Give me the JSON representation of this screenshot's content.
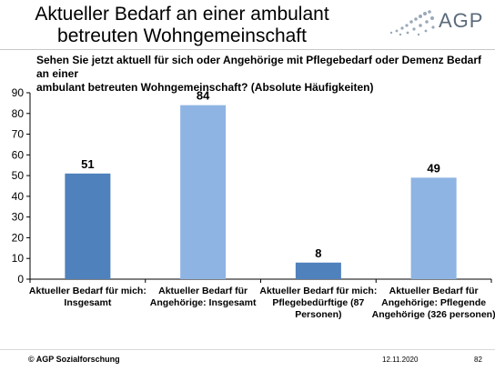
{
  "header": {
    "title_line1": "Aktueller Bedarf an einer ambulant",
    "title_line2": "betreuten Wohngemeinschaft",
    "logo_text": "AGP",
    "logo_color": "#5b6b7b"
  },
  "question": {
    "line1": "Sehen Sie jetzt aktuell für sich oder Angehörige mit Pflegebedarf oder Demenz Bedarf an einer",
    "line2": "ambulant betreuten Wohngemeinschaft? (Absolute Häufigkeiten)"
  },
  "chart_data": {
    "type": "bar",
    "categories": [
      [
        "Aktueller Bedarf für mich:",
        "Insgesamt"
      ],
      [
        "Aktueller Bedarf für",
        "Angehörige: Insgesamt"
      ],
      [
        "Aktueller Bedarf für mich:",
        "Pflegebedürftige (87",
        "Personen)"
      ],
      [
        "Aktueller Bedarf für",
        "Angehörige: Pflegende",
        "Angehörige (326 personen)"
      ]
    ],
    "values": [
      51,
      84,
      8,
      49
    ],
    "bar_colors": [
      "#4f81bd",
      "#8eb4e3",
      "#4f81bd",
      "#8eb4e3"
    ],
    "ylim": [
      0,
      90
    ],
    "yticks": [
      "0",
      "10",
      "20",
      "30",
      "40",
      "50",
      "60",
      "70",
      "80",
      "90"
    ],
    "data_labels": [
      "51",
      "84",
      "8",
      "49"
    ],
    "grid": false,
    "legend": "none"
  },
  "footer": {
    "copyright": "© AGP Sozialforschung",
    "date": "12.11.2020",
    "page": "82"
  }
}
